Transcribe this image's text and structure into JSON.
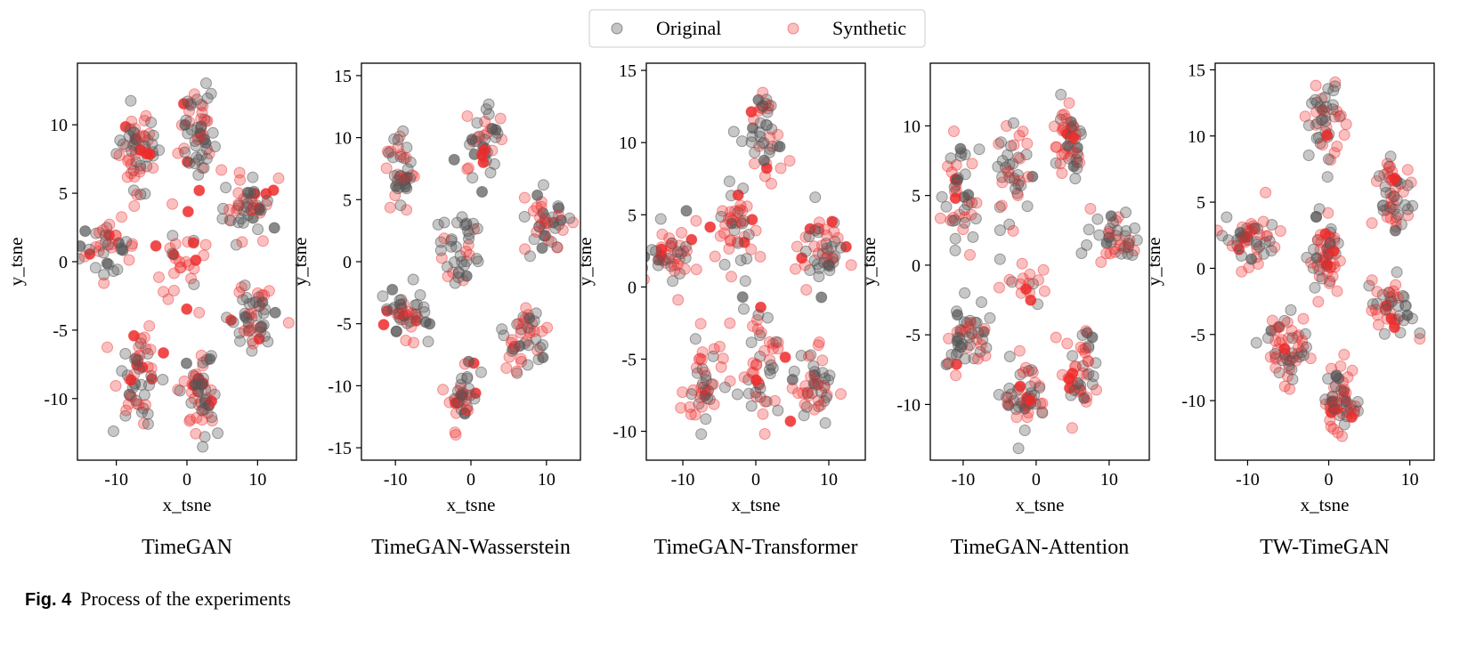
{
  "legend": {
    "original_label": "Original",
    "synthetic_label": "Synthetic",
    "original_color": "#555555",
    "synthetic_color": "#ee2a2a"
  },
  "caption": {
    "label": "Fig. 4",
    "text": "Process of the experiments"
  },
  "chart_data": [
    {
      "type": "scatter",
      "title": "TimeGAN",
      "xlabel": "x_tsne",
      "ylabel": "y_tsne",
      "xlim": [
        -15.5,
        15.5
      ],
      "ylim": [
        -14.5,
        14.5
      ],
      "xticks": [
        -10,
        0,
        10
      ],
      "yticks": [
        -10,
        -5,
        0,
        5,
        10
      ],
      "clusters": [
        {
          "cx": -7,
          "cy": 8,
          "sx": 2.0,
          "sy": 2.0,
          "n": 60,
          "red": 0.45
        },
        {
          "cx": 1.5,
          "cy": 9.5,
          "sx": 1.7,
          "sy": 2.5,
          "n": 55,
          "red": 0.5
        },
        {
          "cx": 9,
          "cy": 4,
          "sx": 2.6,
          "sy": 1.6,
          "n": 50,
          "red": 0.4
        },
        {
          "cx": -11,
          "cy": 1,
          "sx": 2.6,
          "sy": 1.3,
          "n": 40,
          "red": 0.5
        },
        {
          "cx": -1,
          "cy": 0,
          "sx": 2.5,
          "sy": 2.5,
          "n": 30,
          "red": 0.9
        },
        {
          "cx": 9,
          "cy": -4,
          "sx": 2.2,
          "sy": 1.6,
          "n": 50,
          "red": 0.4
        },
        {
          "cx": -7,
          "cy": -8,
          "sx": 2.0,
          "sy": 2.3,
          "n": 55,
          "red": 0.45
        },
        {
          "cx": 1.5,
          "cy": -9.5,
          "sx": 1.6,
          "sy": 2.4,
          "n": 55,
          "red": 0.5
        }
      ]
    },
    {
      "type": "scatter",
      "title": "TimeGAN-Wasserstein",
      "xlabel": "x_tsne",
      "ylabel": "y_tsne",
      "xlim": [
        -14.5,
        14.5
      ],
      "ylim": [
        -16,
        16
      ],
      "xticks": [
        -10,
        0,
        10
      ],
      "yticks": [
        -15,
        -10,
        -5,
        0,
        5,
        10,
        15
      ],
      "clusters": [
        {
          "cx": -9,
          "cy": 7,
          "sx": 1.6,
          "sy": 2.2,
          "n": 40,
          "red": 0.5
        },
        {
          "cx": 1.5,
          "cy": 10,
          "sx": 2.0,
          "sy": 2.0,
          "n": 40,
          "red": 0.4
        },
        {
          "cx": 10,
          "cy": 3,
          "sx": 2.0,
          "sy": 1.8,
          "n": 40,
          "red": 0.3
        },
        {
          "cx": -1.5,
          "cy": 1,
          "sx": 1.7,
          "sy": 2.0,
          "n": 40,
          "red": 0.2
        },
        {
          "cx": -9,
          "cy": -4,
          "sx": 2.2,
          "sy": 1.5,
          "n": 45,
          "red": 0.35
        },
        {
          "cx": 7,
          "cy": -6,
          "sx": 2.0,
          "sy": 1.8,
          "n": 45,
          "red": 0.4
        },
        {
          "cx": -1,
          "cy": -11,
          "sx": 1.2,
          "sy": 2.3,
          "n": 40,
          "red": 0.4
        }
      ]
    },
    {
      "type": "scatter",
      "title": "TimeGAN-Transformer",
      "xlabel": "x_tsne",
      "ylabel": "y_tsne",
      "xlim": [
        -15,
        15
      ],
      "ylim": [
        -12,
        15.5
      ],
      "xticks": [
        -10,
        0,
        10
      ],
      "yticks": [
        -10,
        -5,
        0,
        5,
        10,
        15
      ],
      "clusters": [
        {
          "cx": 1.5,
          "cy": 10.5,
          "sx": 1.6,
          "sy": 2.2,
          "n": 45,
          "red": 0.45
        },
        {
          "cx": -3,
          "cy": 4,
          "sx": 2.0,
          "sy": 2.0,
          "n": 45,
          "red": 0.6
        },
        {
          "cx": 9,
          "cy": 2.5,
          "sx": 2.0,
          "sy": 1.8,
          "n": 50,
          "red": 0.5
        },
        {
          "cx": -11,
          "cy": 2,
          "sx": 2.3,
          "sy": 1.5,
          "n": 45,
          "red": 0.55
        },
        {
          "cx": -7,
          "cy": -7,
          "sx": 1.8,
          "sy": 2.0,
          "n": 45,
          "red": 0.6
        },
        {
          "cx": 0.5,
          "cy": -5,
          "sx": 1.8,
          "sy": 2.6,
          "n": 50,
          "red": 0.5
        },
        {
          "cx": 8,
          "cy": -7,
          "sx": 1.7,
          "sy": 2.0,
          "n": 45,
          "red": 0.5
        }
      ]
    },
    {
      "type": "scatter",
      "title": "TimeGAN-Attention",
      "xlabel": "x_tsne",
      "ylabel": "y_tsne",
      "xlim": [
        -14.5,
        15.5
      ],
      "ylim": [
        -14,
        14.5
      ],
      "xticks": [
        -10,
        0,
        10
      ],
      "yticks": [
        -10,
        -5,
        0,
        5,
        10
      ],
      "clusters": [
        {
          "cx": -10.5,
          "cy": 5,
          "sx": 1.8,
          "sy": 2.2,
          "n": 45,
          "red": 0.4
        },
        {
          "cx": -3,
          "cy": 6.5,
          "sx": 1.6,
          "sy": 2.2,
          "n": 40,
          "red": 0.35
        },
        {
          "cx": 4.5,
          "cy": 9,
          "sx": 1.5,
          "sy": 2.2,
          "n": 45,
          "red": 0.45
        },
        {
          "cx": 11,
          "cy": 2,
          "sx": 2.5,
          "sy": 1.4,
          "n": 40,
          "red": 0.4
        },
        {
          "cx": -1,
          "cy": -1.5,
          "sx": 2.5,
          "sy": 1.2,
          "n": 18,
          "red": 0.9
        },
        {
          "cx": -9.5,
          "cy": -5,
          "sx": 2.0,
          "sy": 1.8,
          "n": 50,
          "red": 0.45
        },
        {
          "cx": -1.5,
          "cy": -9.5,
          "sx": 2.0,
          "sy": 1.8,
          "n": 50,
          "red": 0.45
        },
        {
          "cx": 6,
          "cy": -7.5,
          "sx": 1.8,
          "sy": 2.0,
          "n": 45,
          "red": 0.45
        }
      ]
    },
    {
      "type": "scatter",
      "title": "TW-TimeGAN",
      "xlabel": "x_tsne",
      "ylabel": "y_tsne",
      "xlim": [
        -14,
        13
      ],
      "ylim": [
        -14.5,
        15.5
      ],
      "xticks": [
        -10,
        0,
        10
      ],
      "yticks": [
        -10,
        -5,
        0,
        5,
        10,
        15
      ],
      "clusters": [
        {
          "cx": -0.5,
          "cy": 11,
          "sx": 1.3,
          "sy": 2.0,
          "n": 45,
          "red": 0.5
        },
        {
          "cx": 8,
          "cy": 5.5,
          "sx": 1.7,
          "sy": 1.4,
          "n": 50,
          "red": 0.5
        },
        {
          "cx": -9.5,
          "cy": 2,
          "sx": 1.9,
          "sy": 1.5,
          "n": 50,
          "red": 0.6
        },
        {
          "cx": -0.5,
          "cy": 1,
          "sx": 1.3,
          "sy": 2.2,
          "n": 55,
          "red": 0.55
        },
        {
          "cx": 8,
          "cy": -3,
          "sx": 1.8,
          "sy": 1.5,
          "n": 45,
          "red": 0.5
        },
        {
          "cx": -5,
          "cy": -6,
          "sx": 1.7,
          "sy": 1.9,
          "n": 55,
          "red": 0.6
        },
        {
          "cx": 1.5,
          "cy": -10,
          "sx": 1.3,
          "sy": 1.8,
          "n": 55,
          "red": 0.55
        }
      ]
    }
  ]
}
